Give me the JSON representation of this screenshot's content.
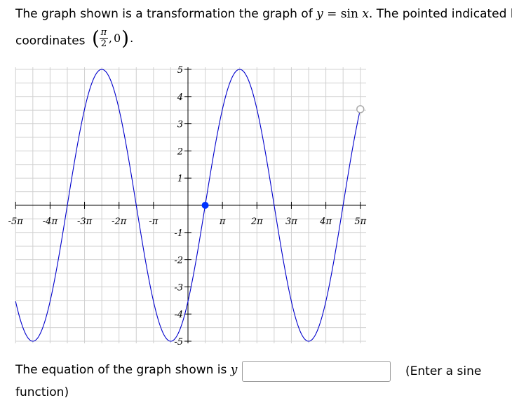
{
  "question": {
    "part1": "The graph shown is a transformation the graph of",
    "y_var": "y",
    "equals": "=",
    "func": "sin",
    "x_var": "x",
    "part2": ". The pointed indicated has",
    "coordinates_label": "coordinates",
    "point_numerator": "π",
    "point_denominator": "2",
    "point_y": "0",
    "period_end": "."
  },
  "answer": {
    "prompt_text": "The equation of the graph shown is",
    "y_var": "y",
    "equals": "=",
    "input_value": "",
    "hint": "(Enter a sine",
    "hint_cont": "function)"
  },
  "chart_data": {
    "type": "line",
    "series": [
      {
        "function": "y = 5 sin(x/2 - π/4)",
        "color": "#0000cc",
        "x_range": [
          "-5π",
          "5π"
        ]
      }
    ],
    "highlighted_point": {
      "x": "π/2",
      "y": 0,
      "color": "#0033ff"
    },
    "open_point": {
      "x": "5π",
      "color": "#aaaaaa"
    },
    "x_tick_labels": [
      "-5π",
      "-4π",
      "-3π",
      "-2π",
      "-π",
      "π",
      "2π",
      "3π",
      "4π",
      "5π"
    ],
    "y_tick_labels": [
      "-5",
      "-4",
      "-3",
      "-2",
      "-1",
      "1",
      "2",
      "3",
      "4",
      "5"
    ],
    "xlim": [
      "-5π",
      "5π"
    ],
    "ylim": [
      -5,
      5
    ],
    "grid": true
  }
}
